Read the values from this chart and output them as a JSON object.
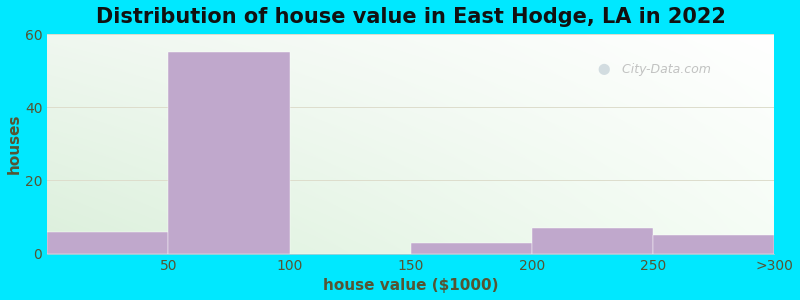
{
  "title": "Distribution of house value in East Hodge, LA in 2022",
  "xlabel": "house value ($1000)",
  "ylabel": "houses",
  "categories": [
    "50",
    "100",
    "150",
    "200",
    "250",
    ">300"
  ],
  "values": [
    6,
    55,
    0,
    3,
    7,
    5
  ],
  "bar_color": "#c0a8cc",
  "ylim": [
    0,
    60
  ],
  "yticks": [
    0,
    20,
    40,
    60
  ],
  "xlim": [
    0,
    6
  ],
  "bg_outer": "#00e8ff",
  "title_fontsize": 15,
  "label_fontsize": 11,
  "tick_fontsize": 10,
  "watermark_text": "City-Data.com",
  "title_color": "#111111",
  "axis_label_color": "#555533",
  "tick_color": "#555533",
  "grid_color": "#ddddcc",
  "grad_topleft": [
    0.94,
    0.97,
    0.94
  ],
  "grad_topright": [
    1.0,
    1.0,
    1.0
  ],
  "grad_bottomleft": [
    0.86,
    0.94,
    0.86
  ],
  "grad_bottomright": [
    0.96,
    0.99,
    0.96
  ]
}
